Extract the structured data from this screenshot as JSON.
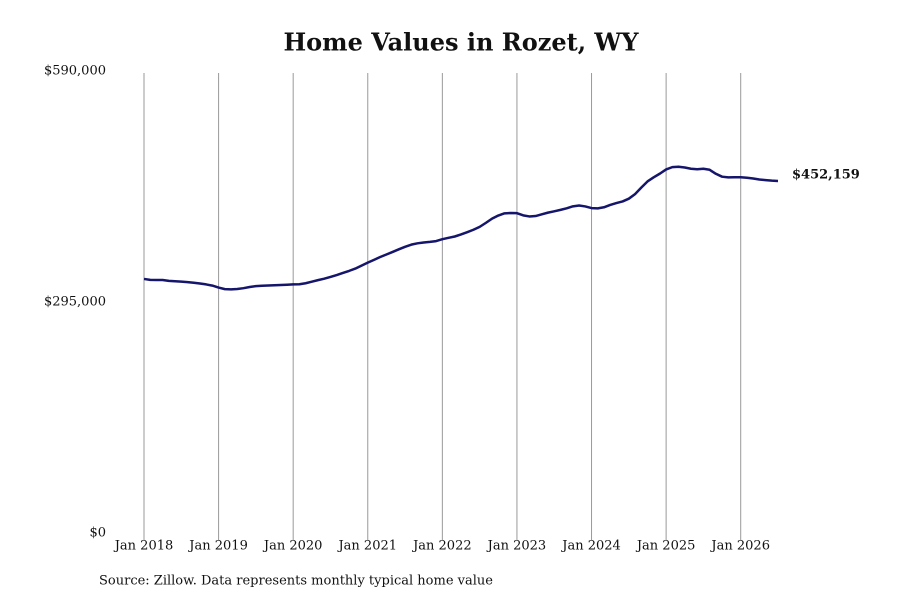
{
  "chart_data": {
    "type": "line",
    "title": "Home Values in Rozet, WY",
    "source": "Source: Zillow. Data represents monthly typical home value",
    "color": "#15156b",
    "x": [
      "2018-01",
      "2018-02",
      "2018-03",
      "2018-04",
      "2018-05",
      "2018-06",
      "2018-07",
      "2018-08",
      "2018-09",
      "2018-10",
      "2018-11",
      "2018-12",
      "2019-01",
      "2019-02",
      "2019-03",
      "2019-04",
      "2019-05",
      "2019-06",
      "2019-07",
      "2019-08",
      "2019-09",
      "2019-10",
      "2019-11",
      "2019-12",
      "2020-01",
      "2020-02",
      "2020-03",
      "2020-04",
      "2020-05",
      "2020-06",
      "2020-07",
      "2020-08",
      "2020-09",
      "2020-10",
      "2020-11",
      "2020-12",
      "2021-01",
      "2021-02",
      "2021-03",
      "2021-04",
      "2021-05",
      "2021-06",
      "2021-07",
      "2021-08",
      "2021-09",
      "2021-10",
      "2021-11",
      "2021-12",
      "2022-01",
      "2022-02",
      "2022-03",
      "2022-04",
      "2022-05",
      "2022-06",
      "2022-07",
      "2022-08",
      "2022-09",
      "2022-10",
      "2022-11",
      "2022-12",
      "2023-01",
      "2023-02",
      "2023-03",
      "2023-04",
      "2023-05",
      "2023-06",
      "2023-07",
      "2023-08",
      "2023-09",
      "2023-10",
      "2023-11",
      "2023-12",
      "2024-01",
      "2024-02",
      "2024-03",
      "2024-04",
      "2024-05",
      "2024-06",
      "2024-07",
      "2024-08",
      "2024-09",
      "2024-10",
      "2024-11",
      "2024-12",
      "2025-01",
      "2025-02",
      "2025-03",
      "2025-04",
      "2025-05",
      "2025-06",
      "2025-07",
      "2025-08",
      "2025-09",
      "2025-10",
      "2025-11",
      "2025-12",
      "2026-01",
      "2026-02",
      "2026-03",
      "2026-04",
      "2026-05",
      "2026-06",
      "2026-07"
    ],
    "values": [
      327000,
      325800,
      325700,
      325600,
      324500,
      324000,
      323500,
      323000,
      322200,
      321200,
      320000,
      318500,
      316000,
      314000,
      313700,
      314200,
      315200,
      316700,
      317800,
      318300,
      318600,
      319000,
      319300,
      319600,
      320000,
      320200,
      321500,
      323500,
      325500,
      327300,
      329600,
      332000,
      334600,
      337300,
      340200,
      344000,
      347800,
      351400,
      355000,
      358200,
      361500,
      364800,
      368000,
      370800,
      372500,
      373600,
      374300,
      375300,
      377800,
      379500,
      381200,
      383800,
      386700,
      389800,
      393500,
      398600,
      404000,
      408000,
      410800,
      411200,
      411000,
      408200,
      406800,
      407300,
      409500,
      411700,
      413400,
      415200,
      417200,
      419700,
      420800,
      419600,
      417500,
      417100,
      418500,
      421500,
      423900,
      426000,
      429500,
      435300,
      443600,
      451500,
      456800,
      461500,
      466800,
      469800,
      470300,
      469300,
      467700,
      467100,
      467700,
      466400,
      461300,
      457600,
      456700,
      456900,
      456800,
      456200,
      455300,
      454000,
      453200,
      452500,
      452159
    ],
    "value_labels": [
      null,
      null,
      null,
      null,
      null,
      null,
      null,
      null,
      null,
      null,
      null,
      null,
      null,
      null,
      null,
      null,
      null,
      null,
      null,
      null,
      null,
      null,
      null,
      null,
      null,
      null,
      null,
      null,
      null,
      null,
      null,
      null,
      null,
      null,
      null,
      null,
      null,
      null,
      null,
      null,
      null,
      null,
      null,
      null,
      null,
      null,
      null,
      null,
      null,
      null,
      null,
      null,
      null,
      null,
      null,
      null,
      null,
      null,
      null,
      null,
      null,
      null,
      null,
      null,
      null,
      null,
      null,
      null,
      null,
      null,
      null,
      null,
      null,
      null,
      null,
      null,
      null,
      null,
      null,
      null,
      null,
      null,
      null,
      null,
      null,
      null,
      null,
      null,
      null,
      null,
      null,
      null,
      null,
      null,
      null,
      null,
      null,
      null,
      null,
      null,
      null,
      null,
      "$452,159"
    ],
    "xlim": [
      "2018-01",
      "2026-07"
    ],
    "xticks": [
      {
        "value": "2018-01",
        "label": "Jan 2018"
      },
      {
        "value": "2019-01",
        "label": "Jan 2019"
      },
      {
        "value": "2020-01",
        "label": "Jan 2020"
      },
      {
        "value": "2021-01",
        "label": "Jan 2021"
      },
      {
        "value": "2022-01",
        "label": "Jan 2022"
      },
      {
        "value": "2023-01",
        "label": "Jan 2023"
      },
      {
        "value": "2024-01",
        "label": "Jan 2024"
      },
      {
        "value": "2025-01",
        "label": "Jan 2025"
      },
      {
        "value": "2026-01",
        "label": "Jan 2026"
      }
    ],
    "ylim": [
      0,
      590000
    ],
    "yticks": [
      {
        "value": 0,
        "label": "$0"
      },
      {
        "value": 295000,
        "label": "$295,000"
      },
      {
        "value": 590000,
        "label": "$590,000"
      }
    ],
    "grid": true
  }
}
